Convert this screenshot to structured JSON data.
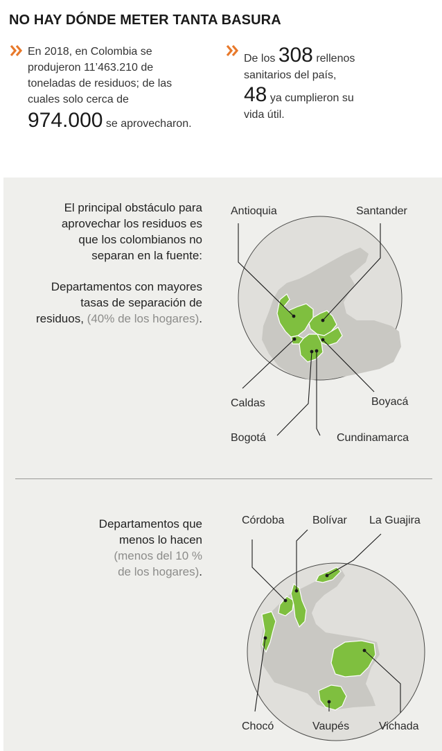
{
  "title": "NO HAY DÓNDE METER TANTA BASURA",
  "stat1": {
    "line1": "En 2018, en Colombia se",
    "line2": "produjeron 11’463.210 de",
    "line3": "toneladas de residuos; de las",
    "line4": "cuales solo cerca de",
    "big": "974.000",
    "tail": "se aprovecharon."
  },
  "stat2": {
    "pre": "De los",
    "big1": "308",
    "post1": "rellenos",
    "line2": "sanitarios del país,",
    "big2": "48",
    "post2": "ya cumplieron su",
    "line4": "vida útil."
  },
  "section1": {
    "intro": [
      "El principal obstáculo para",
      "aprovechar los residuos es",
      "que los colombianos no",
      "separan en la fuente:"
    ],
    "sub_line1": "Departamentos con mayores",
    "sub_line2": "tasas de separación de",
    "sub_line3_a": "residuos,",
    "sub_line3_b": "(40% de los hogares)",
    "sub_line3_c": ".",
    "labels": {
      "antioquia": "Antioquia",
      "santander": "Santander",
      "caldas": "Caldas",
      "boyaca": "Boyacá",
      "bogota": "Bogotá",
      "cundinamarca": "Cundinamarca"
    }
  },
  "section2": {
    "line1": "Departamentos que",
    "line2": "menos lo hacen",
    "line3": "(menos del 10 %",
    "line4_a": "de los hogares)",
    "line4_b": ".",
    "labels": {
      "cordoba": "Córdoba",
      "bolivar": "Bolívar",
      "la_guajira": "La Guajira",
      "choco": "Chocó",
      "vaupes": "Vaupés",
      "vichada": "Vichada"
    }
  },
  "colors": {
    "accent": "#e8792b",
    "highlight": "#7fbf3f",
    "circle": "#e0dfdb",
    "land": "#c9c8c3",
    "panel": "#efefec"
  }
}
